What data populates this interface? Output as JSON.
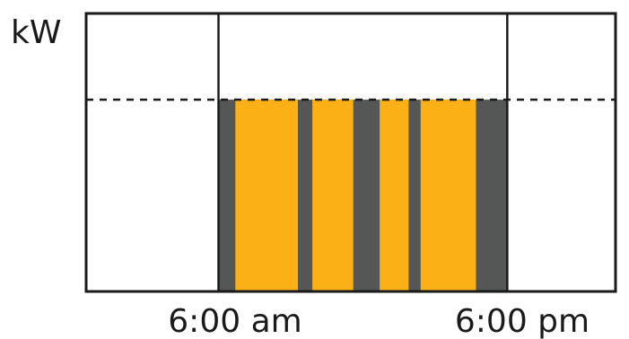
{
  "chart_data": {
    "type": "bar",
    "title": "",
    "ylabel": "kW",
    "xlabel": "",
    "x_tick_labels": [
      "6:00 am",
      "6:00 pm"
    ],
    "x_tick_positions_hours": [
      6,
      18
    ],
    "x_range_hours": [
      0.5,
      22.5
    ],
    "y_range": [
      0,
      1
    ],
    "threshold_level": 0.69,
    "threshold_line_style": "dashed",
    "daytime_window": {
      "start_hour": 6,
      "end_hour": 18,
      "level": 0.69,
      "color": "#555756"
    },
    "bars": {
      "color": "#fbb116",
      "segments": [
        {
          "start_hour": 6.7,
          "end_hour": 9.3,
          "value": 0.69
        },
        {
          "start_hour": 9.9,
          "end_hour": 11.6,
          "value": 0.69
        },
        {
          "start_hour": 12.7,
          "end_hour": 13.9,
          "value": 0.69
        },
        {
          "start_hour": 14.4,
          "end_hour": 16.7,
          "value": 0.69
        }
      ]
    },
    "grid": false
  }
}
